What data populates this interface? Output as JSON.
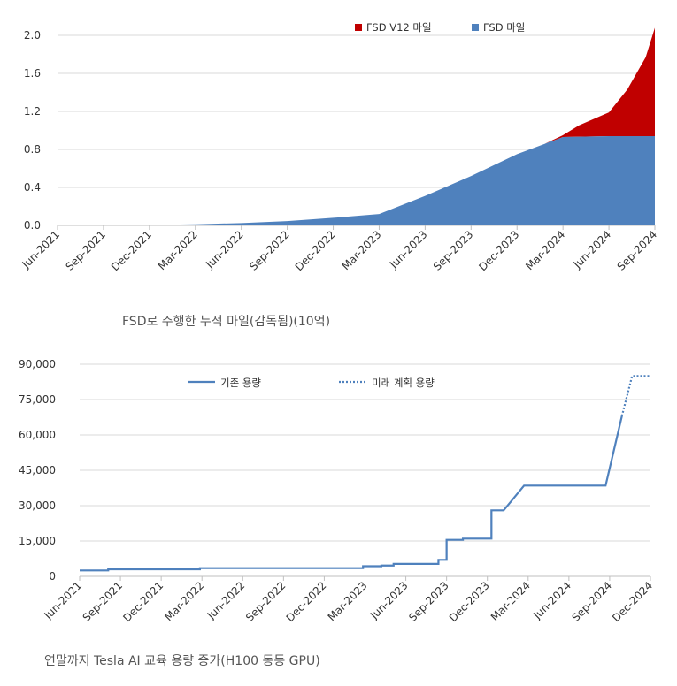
{
  "chart_data": [
    {
      "type": "area",
      "title": "FSD로 주행한 누적 마일(감독됨)(10억)",
      "categories": [
        "Jun-2021",
        "Sep-2021",
        "Dec-2021",
        "Mar-2022",
        "Jun-2022",
        "Sep-2022",
        "Dec-2022",
        "Mar-2023",
        "Jun-2023",
        "Sep-2023",
        "Dec-2023",
        "Mar-2024",
        "Jun-2024",
        "Sep-2024"
      ],
      "y_ticks": [
        "0.0",
        "0.4",
        "0.8",
        "1.2",
        "1.6",
        "2.0"
      ],
      "ylim": [
        0,
        2.1
      ],
      "legend_position": "top-right",
      "series": [
        {
          "name": "FSD V12 마일",
          "color": "#C00000",
          "stacked": true,
          "x": [
            10.6,
            11.0,
            11.35,
            12.0,
            12.4,
            12.8,
            13.0
          ],
          "values": [
            0,
            0.02,
            0.12,
            0.25,
            0.49,
            0.83,
            1.14
          ]
        },
        {
          "name": "FSD 마일",
          "color": "#4F81BD",
          "x": [
            0,
            1,
            2,
            3,
            4,
            5,
            6,
            7,
            8,
            9,
            10,
            11,
            12,
            13
          ],
          "values": [
            0,
            0,
            0.005,
            0.012,
            0.025,
            0.045,
            0.08,
            0.12,
            0.31,
            0.52,
            0.75,
            0.93,
            0.94,
            0.94
          ]
        }
      ]
    },
    {
      "type": "line",
      "title": "연말까지 Tesla AI 교육 용량 증가(H100 동등 GPU)",
      "categories": [
        "Jun-2021",
        "Sep-2021",
        "Dec-2021",
        "Mar-2022",
        "Jun-2022",
        "Sep-2022",
        "Dec-2022",
        "Mar-2023",
        "Jun-2023",
        "Sep-2023",
        "Dec-2023",
        "Mar-2024",
        "Jun-2024",
        "Sep-2024",
        "Dec-2024"
      ],
      "y_ticks": [
        "0",
        "15,000",
        "30,000",
        "45,000",
        "60,000",
        "75,000",
        "90,000"
      ],
      "ylim": [
        0,
        90000
      ],
      "legend_position": "top",
      "series": [
        {
          "name": "기존 용량",
          "color": "#4F81BD",
          "style": "solid",
          "x": [
            0,
            0.7,
            0.7,
            2.95,
            2.95,
            6.95,
            6.95,
            7.4,
            7.4,
            7.7,
            7.7,
            8.8,
            8.8,
            9.0,
            9.0,
            9.4,
            9.4,
            10.0,
            10.0,
            10.1,
            10.1,
            10.4,
            10.4,
            10.9,
            11.25,
            12.9,
            13.3
          ],
          "values": [
            2500,
            2500,
            3000,
            3000,
            3500,
            3500,
            4300,
            4300,
            4600,
            4600,
            5300,
            5300,
            7000,
            7000,
            15500,
            15500,
            16000,
            16000,
            16000,
            16000,
            28000,
            28000,
            28000,
            38500,
            38500,
            38500,
            68000
          ]
        },
        {
          "name": "미래 계획 용량",
          "color": "#4F81BD",
          "style": "dotted",
          "x": [
            13.3,
            13.55,
            14.0
          ],
          "values": [
            68000,
            85000,
            85000
          ]
        }
      ]
    }
  ]
}
